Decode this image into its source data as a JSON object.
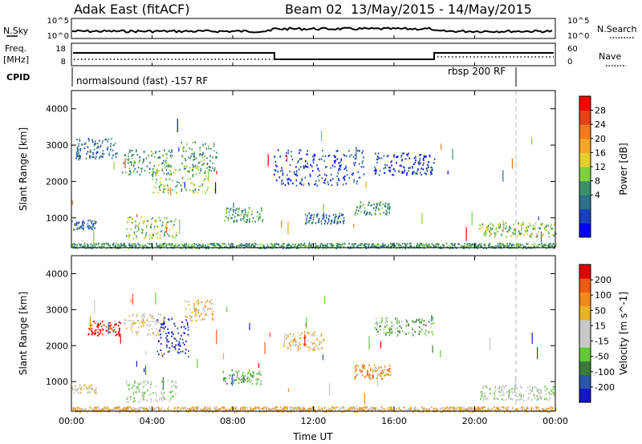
{
  "header": {
    "station": "Adak East (fitACF)",
    "beam": "Beam 02",
    "date_range": "13/May/2015 - 14/May/2015"
  },
  "top_panels": {
    "nsky_label": "N.Sky",
    "nsky_ticks": [
      "10^5",
      "10^0"
    ],
    "nsearch_label": "N.Search",
    "nsearch_ticks": [
      "10^5",
      "10^0"
    ],
    "freq_label_1": "Freq.",
    "freq_label_2": "[MHz]",
    "freq_ticks": [
      "18",
      "8"
    ],
    "nave_label": "Nave",
    "nave_ticks": [
      "60",
      "0"
    ],
    "cpid_label": "CPID",
    "cpid_modes": [
      "normalsound (fast) -157 RF",
      "rbsp 200 RF"
    ]
  },
  "colors": {
    "power_scale": [
      "#0000ff",
      "#1a3fbf",
      "#2f6f8a",
      "#3d8f6b",
      "#7fcf3f",
      "#e3d02b",
      "#f5a623",
      "#f07a1a",
      "#e8401a",
      "#ff0000"
    ],
    "velocity_scale": [
      "#1414c8",
      "#2a55a8",
      "#3b7a3b",
      "#63c83a",
      "#c8c8c8",
      "#c8c8c8",
      "#e8b423",
      "#f08a18",
      "#f05a14",
      "#e00000"
    ]
  },
  "chart_data": [
    {
      "type": "heatmap",
      "title": "Power",
      "xlabel": "",
      "ylabel": "Slant Range [km]",
      "colorbar_label": "Power [dB]",
      "colorbar_ticks": [
        "28",
        "24",
        "20",
        "16",
        "12",
        "8",
        "4"
      ],
      "xlim": [
        0,
        24
      ],
      "ylim": [
        180,
        4500
      ],
      "y_ticks": [
        "4000",
        "3000",
        "2000",
        "1000"
      ],
      "y_tick_values": [
        4000,
        3000,
        2000,
        1000
      ],
      "grid": false,
      "regions": [
        {
          "t0": 0.2,
          "t1": 2.3,
          "r0": 2650,
          "r1": 3200,
          "level": 2
        },
        {
          "t0": 2.5,
          "t1": 5.0,
          "r0": 2200,
          "r1": 2900,
          "level": 3
        },
        {
          "t0": 4.0,
          "t1": 6.8,
          "r0": 1700,
          "r1": 2500,
          "level": 4
        },
        {
          "t0": 5.4,
          "t1": 7.2,
          "r0": 2300,
          "r1": 3100,
          "level": 3
        },
        {
          "t0": 0.0,
          "t1": 1.2,
          "r0": 700,
          "r1": 950,
          "level": 2
        },
        {
          "t0": 2.7,
          "t1": 5.2,
          "r0": 450,
          "r1": 1050,
          "level": 4
        },
        {
          "t0": 7.5,
          "t1": 9.5,
          "r0": 900,
          "r1": 1300,
          "level": 3
        },
        {
          "t0": 10.0,
          "t1": 14.5,
          "r0": 1900,
          "r1": 2900,
          "level": 1
        },
        {
          "t0": 11.5,
          "t1": 13.5,
          "r0": 850,
          "r1": 1150,
          "level": 2
        },
        {
          "t0": 14.0,
          "t1": 15.8,
          "r0": 1100,
          "r1": 1450,
          "level": 3
        },
        {
          "t0": 15.0,
          "t1": 18.0,
          "r0": 2200,
          "r1": 2800,
          "level": 1
        },
        {
          "t0": 20.2,
          "t1": 24.0,
          "r0": 500,
          "r1": 900,
          "level": 4
        },
        {
          "t0": 0.0,
          "t1": 24.0,
          "r0": 180,
          "r1": 320,
          "level": 3
        }
      ]
    },
    {
      "type": "heatmap",
      "title": "Velocity",
      "xlabel": "Time UT",
      "ylabel": "Slant Range [km]",
      "colorbar_label": "Velocity [m s^-1]",
      "colorbar_ticks": [
        "200",
        "100",
        "50",
        "15",
        "-15",
        "-50",
        "-100",
        "-200"
      ],
      "xlim": [
        0,
        24
      ],
      "ylim": [
        180,
        4500
      ],
      "x_ticks": [
        "00:00",
        "04:00",
        "08:00",
        "12:00",
        "16:00",
        "20:00",
        "00:00"
      ],
      "x_tick_values": [
        0,
        4,
        8,
        12,
        16,
        20,
        24
      ],
      "y_ticks": [
        "4000",
        "3000",
        "2000",
        "1000"
      ],
      "y_tick_values": [
        4000,
        3000,
        2000,
        1000
      ],
      "grid": false,
      "regions": [
        {
          "t0": 0.8,
          "t1": 2.4,
          "r0": 2300,
          "r1": 2700,
          "level": 9
        },
        {
          "t0": 2.6,
          "t1": 4.6,
          "r0": 2300,
          "r1": 2900,
          "level": 5
        },
        {
          "t0": 4.2,
          "t1": 5.8,
          "r0": 1700,
          "r1": 2800,
          "level": 0
        },
        {
          "t0": 5.6,
          "t1": 7.0,
          "r0": 2700,
          "r1": 3300,
          "level": 6
        },
        {
          "t0": 0.0,
          "t1": 1.2,
          "r0": 700,
          "r1": 950,
          "level": 5
        },
        {
          "t0": 2.7,
          "t1": 5.2,
          "r0": 450,
          "r1": 1050,
          "level": 4
        },
        {
          "t0": 7.5,
          "t1": 9.5,
          "r0": 950,
          "r1": 1350,
          "level": 3
        },
        {
          "t0": 10.5,
          "t1": 12.5,
          "r0": 1900,
          "r1": 2400,
          "level": 6
        },
        {
          "t0": 14.0,
          "t1": 15.8,
          "r0": 1100,
          "r1": 1500,
          "level": 7
        },
        {
          "t0": 15.0,
          "t1": 18.0,
          "r0": 2300,
          "r1": 2800,
          "level": 3
        },
        {
          "t0": 20.2,
          "t1": 24.0,
          "r0": 500,
          "r1": 900,
          "level": 4
        },
        {
          "t0": 0.0,
          "t1": 24.0,
          "r0": 180,
          "r1": 320,
          "level": 6
        }
      ]
    }
  ]
}
